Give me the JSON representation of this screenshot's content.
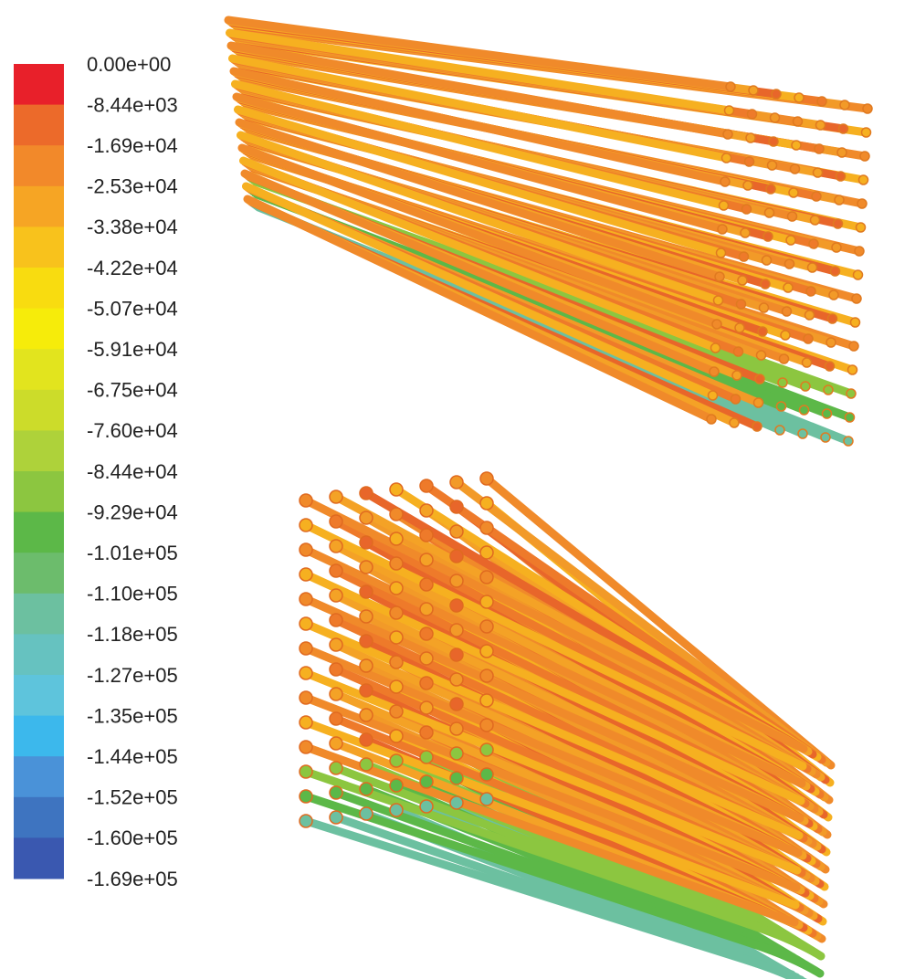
{
  "legend": {
    "labels": [
      "0.00e+00",
      "-8.44e+03",
      "-1.69e+04",
      "-2.53e+04",
      "-3.38e+04",
      "-4.22e+04",
      "-5.07e+04",
      "-5.91e+04",
      "-6.75e+04",
      "-7.60e+04",
      "-8.44e+04",
      "-9.29e+04",
      "-1.01e+05",
      "-1.10e+05",
      "-1.18e+05",
      "-1.27e+05",
      "-1.35e+05",
      "-1.44e+05",
      "-1.52e+05",
      "-1.60e+05",
      "-1.69e+05"
    ],
    "colors": [
      "#e8202a",
      "#ec6a2a",
      "#f2892a",
      "#f6a524",
      "#f8c21c",
      "#f8dc10",
      "#f6ec0a",
      "#e2e41e",
      "#ccdc2a",
      "#aed23a",
      "#8cc640",
      "#5cb848",
      "#6cbc6c",
      "#6cc0a0",
      "#66c2c0",
      "#5ec4dc",
      "#3cb8ec",
      "#4a92d8",
      "#3e74c0",
      "#3a58b0"
    ]
  }
}
